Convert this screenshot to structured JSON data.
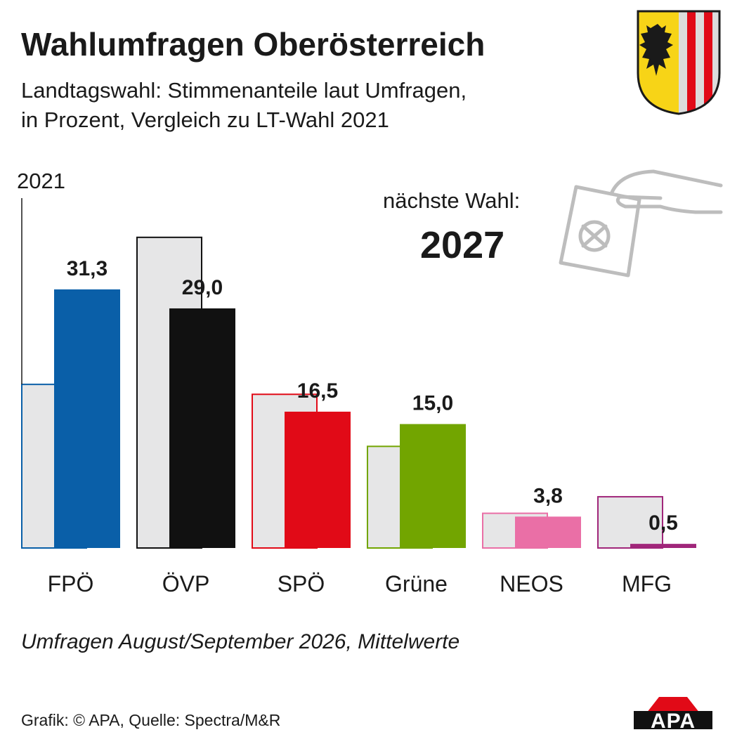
{
  "header": {
    "title": "Wahlumfragen Oberösterreich",
    "subtitle_line1": "Landtagswahl: Stimmenanteile laut Umfragen,",
    "subtitle_line2": "in Prozent, Vergleich zu LT-Wahl 2021"
  },
  "next_election": {
    "label": "nächste Wahl:",
    "year": "2027"
  },
  "footer": {
    "note": "Umfragen August/September 2026, Mittelwerte",
    "source": "Grafik: © APA, Quelle: Spectra/M&R",
    "logo_text": "APA"
  },
  "icons": {
    "crest": "upper-austria-coat-of-arms-icon",
    "ballot": "hand-ballot-icon",
    "logo": "apa-logo-icon"
  },
  "chart_data": {
    "type": "bar",
    "categories": [
      "FPÖ",
      "ÖVP",
      "SPÖ",
      "Grüne",
      "NEOS",
      "MFG"
    ],
    "baseline_label": "2021",
    "series": [
      {
        "values": [
          19.8,
          37.6,
          18.6,
          12.3,
          4.2,
          6.2
        ]
      },
      {
        "values": [
          31.3,
          29.0,
          16.5,
          15.0,
          3.8,
          0.5
        ],
        "labels": [
          "31,3",
          "29,0",
          "16,5",
          "15,0",
          "3,8",
          "0,5"
        ]
      }
    ],
    "colors": [
      "#0a5fa8",
      "#111111",
      "#e10a17",
      "#72a500",
      "#ea6fa6",
      "#a0267a"
    ],
    "baseline_fill": "#e6e6e7",
    "ylim": [
      0,
      40
    ],
    "grid": false
  }
}
